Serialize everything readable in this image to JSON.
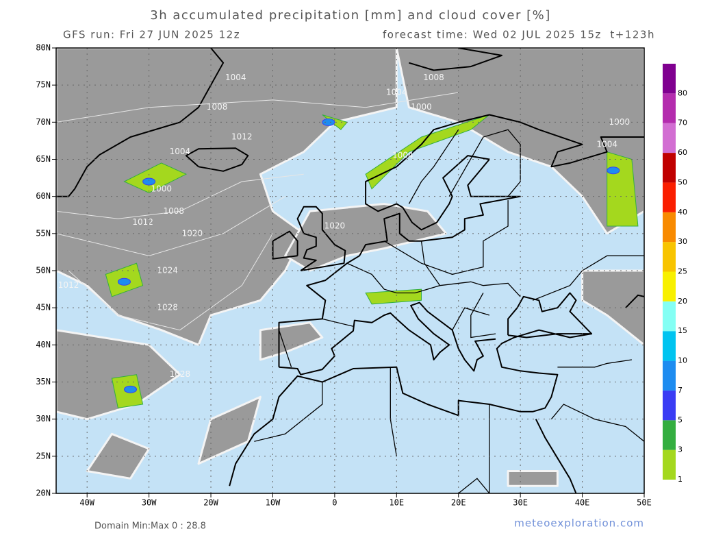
{
  "header": {
    "title": "3h accumulated precipitation [mm] and cloud cover [%]",
    "run": "GFS run: Fri 27 JUN 2025 12z",
    "forecast": "forecast time: Wed 02 JUL 2025 15z  t+123h"
  },
  "map": {
    "lat_labels": [
      "80N",
      "75N",
      "70N",
      "65N",
      "60N",
      "55N",
      "50N",
      "45N",
      "40N",
      "35N",
      "30N",
      "25N",
      "20N"
    ],
    "lon_labels": [
      "40W",
      "30W",
      "20W",
      "10W",
      "0",
      "10E",
      "20E",
      "30E",
      "40E",
      "50E"
    ],
    "isobar_labels": [
      "1004",
      "1008",
      "1004",
      "1000",
      "1008",
      "1012",
      "1004",
      "1000",
      "1008",
      "1012",
      "1020",
      "1024",
      "1012",
      "1028",
      "1028",
      "1020",
      "1004",
      "1000",
      "1004"
    ]
  },
  "colorbar": {
    "labels": [
      "1",
      "3",
      "5",
      "7",
      "10",
      "15",
      "20",
      "25",
      "30",
      "40",
      "50",
      "60",
      "70",
      "80"
    ],
    "colors": [
      "#a4d81e",
      "#34ae40",
      "#3a3cf4",
      "#1e8cf0",
      "#00c4f0",
      "#84fff4",
      "#f8f000",
      "#f8c400",
      "#f88a00",
      "#fa1e00",
      "#c00000",
      "#d26ed2",
      "#b42cae",
      "#800090"
    ]
  },
  "footer": {
    "domain": "Domain Min:Max 0 : 28.8",
    "credit": "meteoexploration.com"
  }
}
